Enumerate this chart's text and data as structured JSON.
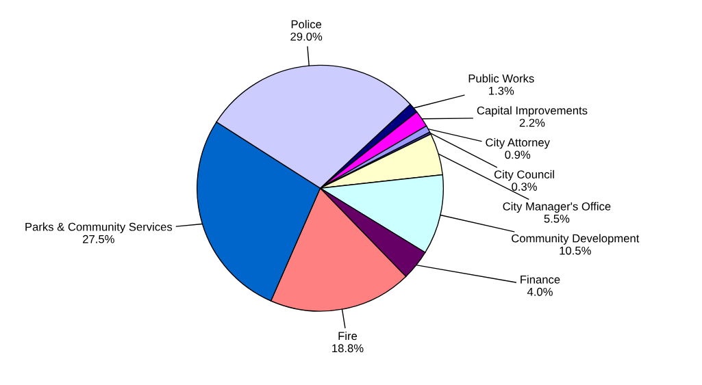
{
  "chart_data": {
    "type": "pie",
    "categories": [
      "Public Works",
      "Capital Improvements",
      "City Attorney",
      "City Council",
      "City Manager's Office",
      "Community Development",
      "Finance",
      "Fire",
      "Parks & Community Services",
      "Police"
    ],
    "values": [
      1.3,
      2.2,
      0.9,
      0.3,
      5.5,
      10.5,
      4.0,
      18.8,
      27.5,
      29.0
    ],
    "value_labels": [
      "1.3%",
      "2.2%",
      "0.9%",
      "0.3%",
      "5.5%",
      "10.5%",
      "4.0%",
      "18.8%",
      "27.5%",
      "29.0%"
    ],
    "colors": [
      "#000080",
      "#ff00ff",
      "#9999ff",
      "#333399",
      "#ffffcc",
      "#ccffff",
      "#660066",
      "#ff8080",
      "#0066cc",
      "#ccccff"
    ]
  }
}
